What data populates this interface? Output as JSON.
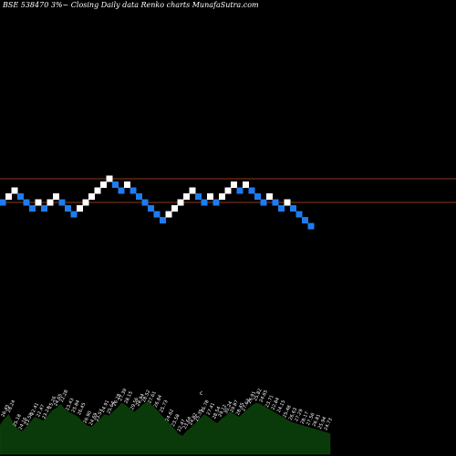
{
  "chart_data": {
    "type": "renko",
    "title": "BSE 538470  3%~  Closing Daily data  Renko  charts MunafaSutra.com",
    "colors": {
      "background": "#000000",
      "up": "#ffffff",
      "down": "#1e7cf0",
      "reference_line": "#8b3a1a",
      "volume_fill": "#0a3a0a",
      "volume_label": "#ffffff"
    },
    "price_bricks": [
      {
        "level": 0,
        "dir": "down"
      },
      {
        "level": 1,
        "dir": "up"
      },
      {
        "level": 2,
        "dir": "up"
      },
      {
        "level": 1,
        "dir": "down"
      },
      {
        "level": 0,
        "dir": "down"
      },
      {
        "level": -1,
        "dir": "down"
      },
      {
        "level": 0,
        "dir": "up"
      },
      {
        "level": -1,
        "dir": "down"
      },
      {
        "level": 0,
        "dir": "up"
      },
      {
        "level": 1,
        "dir": "up"
      },
      {
        "level": 0,
        "dir": "down"
      },
      {
        "level": -1,
        "dir": "down"
      },
      {
        "level": -2,
        "dir": "down"
      },
      {
        "level": -1,
        "dir": "up"
      },
      {
        "level": 0,
        "dir": "up"
      },
      {
        "level": 1,
        "dir": "up"
      },
      {
        "level": 2,
        "dir": "up"
      },
      {
        "level": 3,
        "dir": "up"
      },
      {
        "level": 4,
        "dir": "up"
      },
      {
        "level": 3,
        "dir": "down"
      },
      {
        "level": 2,
        "dir": "down"
      },
      {
        "level": 3,
        "dir": "up"
      },
      {
        "level": 2,
        "dir": "down"
      },
      {
        "level": 1,
        "dir": "down"
      },
      {
        "level": 0,
        "dir": "down"
      },
      {
        "level": -1,
        "dir": "down"
      },
      {
        "level": -2,
        "dir": "down"
      },
      {
        "level": -3,
        "dir": "down"
      },
      {
        "level": -2,
        "dir": "up"
      },
      {
        "level": -1,
        "dir": "up"
      },
      {
        "level": 0,
        "dir": "up"
      },
      {
        "level": 1,
        "dir": "up"
      },
      {
        "level": 2,
        "dir": "up"
      },
      {
        "level": 1,
        "dir": "down"
      },
      {
        "level": 0,
        "dir": "down"
      },
      {
        "level": 1,
        "dir": "up"
      },
      {
        "level": 0,
        "dir": "down"
      },
      {
        "level": 1,
        "dir": "up"
      },
      {
        "level": 2,
        "dir": "up"
      },
      {
        "level": 3,
        "dir": "up"
      },
      {
        "level": 2,
        "dir": "down"
      },
      {
        "level": 3,
        "dir": "up"
      },
      {
        "level": 2,
        "dir": "down"
      },
      {
        "level": 1,
        "dir": "down"
      },
      {
        "level": 0,
        "dir": "down"
      },
      {
        "level": 1,
        "dir": "up"
      },
      {
        "level": 0,
        "dir": "down"
      },
      {
        "level": -1,
        "dir": "down"
      },
      {
        "level": 0,
        "dir": "up"
      },
      {
        "level": -1,
        "dir": "down"
      },
      {
        "level": -2,
        "dir": "down"
      },
      {
        "level": -3,
        "dir": "down"
      },
      {
        "level": -4,
        "dir": "down"
      }
    ],
    "reference_lines": [
      4,
      0
    ],
    "volume_heights": [
      0.45,
      0.55,
      0.62,
      0.48,
      0.4,
      0.35,
      0.42,
      0.5,
      0.58,
      0.55,
      0.52,
      0.6,
      0.68,
      0.72,
      0.78,
      0.7,
      0.65,
      0.62,
      0.58,
      0.5,
      0.45,
      0.42,
      0.48,
      0.55,
      0.62,
      0.6,
      0.66,
      0.72,
      0.8,
      0.76,
      0.7,
      0.66,
      0.72,
      0.78,
      0.82,
      0.76,
      0.7,
      0.62,
      0.55,
      0.48,
      0.4,
      0.32,
      0.28,
      0.36,
      0.42,
      0.48,
      0.55,
      0.62,
      0.58,
      0.52,
      0.48,
      0.55,
      0.6,
      0.66,
      0.62,
      0.58,
      0.64,
      0.7,
      0.76,
      0.8,
      0.78,
      0.74,
      0.7,
      0.66,
      0.62,
      0.58,
      0.54,
      0.5,
      0.48,
      0.46,
      0.44,
      0.42,
      0.4,
      0.38,
      0.36,
      0.34,
      0.32
    ],
    "volume_labels": [
      "26.45",
      "28.24",
      "25.18",
      "24.16",
      "23.58",
      "22.41",
      "22.47",
      "23.24",
      "25.26",
      "24.65",
      "22.28",
      "23.43",
      "25.84",
      "26.45",
      "26.90",
      "24.69",
      "23.57",
      "24.91",
      "25.64",
      "26.28",
      "27.39",
      "28.15",
      "29.56",
      "28.94",
      "28.52",
      "27.61",
      "26.84",
      "25.73",
      "24.62",
      "23.58",
      "22.47",
      "23.64",
      "24.82",
      "25.35",
      "26.78",
      "27.41",
      "28.54",
      "29.12",
      "30.24",
      "29.87",
      "28.45",
      "27.63",
      "26.91",
      "25.82",
      "24.65",
      "23.71",
      "22.84",
      "24.15",
      "25.48",
      "26.63",
      "27.29",
      "28.17",
      "27.56",
      "26.81",
      "25.94",
      "24.73"
    ],
    "volume_marker": "c"
  }
}
